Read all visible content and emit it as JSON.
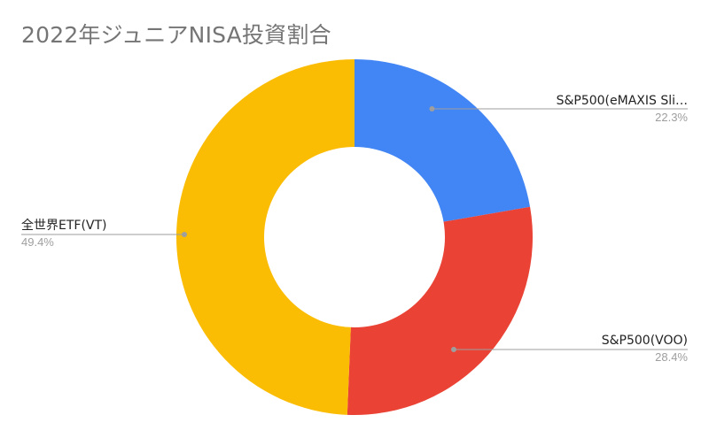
{
  "chart_data": {
    "type": "pie",
    "donut": true,
    "title": "2022年ジュニアNISA投資割合",
    "legend": "none",
    "slices": [
      {
        "label": "S&P500(eMAXIS Sli…",
        "value": 22.3,
        "percent_label": "22.3%",
        "color": "#4285f4"
      },
      {
        "label": "S&P500(VOO)",
        "value": 28.4,
        "percent_label": "28.4%",
        "color": "#ea4335"
      },
      {
        "label": "全世界ETF(VT)",
        "value": 49.4,
        "percent_label": "49.4%",
        "color": "#fbbc04"
      }
    ]
  }
}
